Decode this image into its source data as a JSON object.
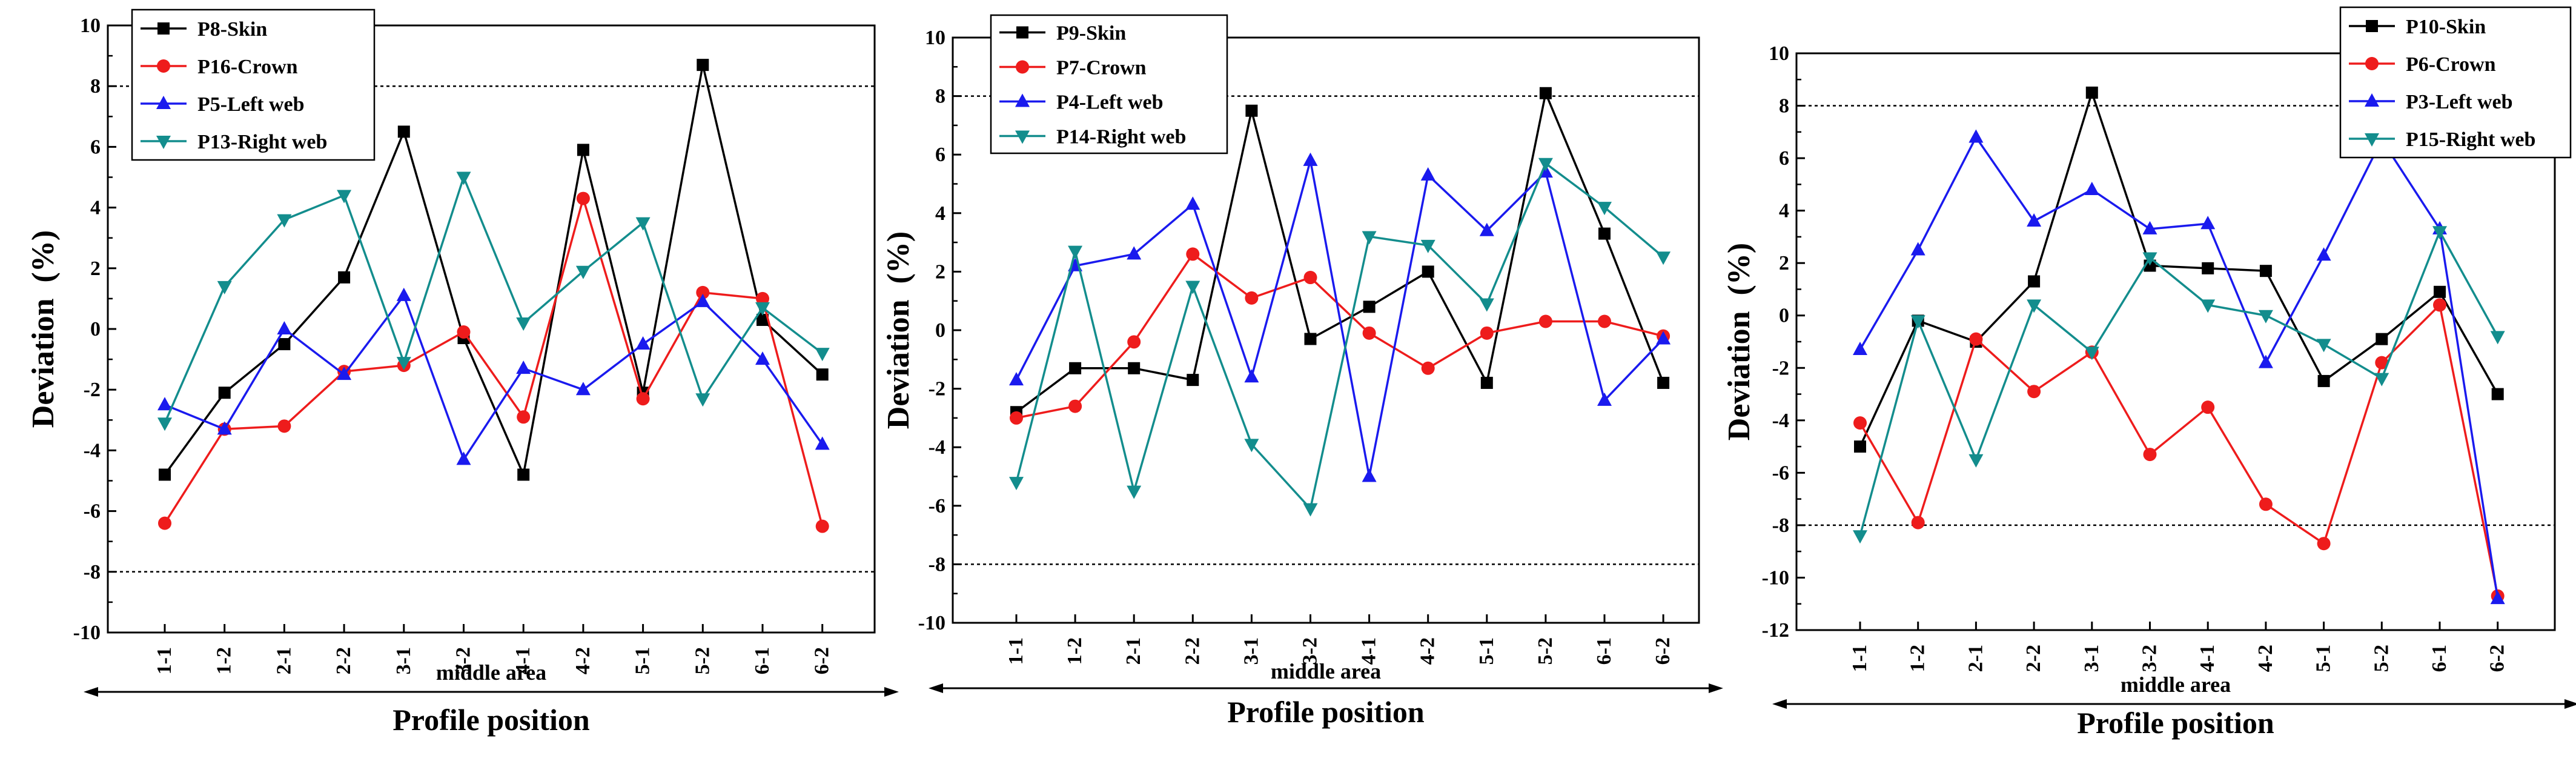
{
  "chart_data": [
    {
      "type": "line",
      "xlabel": "Profile position",
      "ylabel": "Deviation  (%)",
      "area_label": "middle area",
      "categories": [
        "1-1",
        "1-2",
        "2-1",
        "2-2",
        "3-1",
        "3-2",
        "4-1",
        "4-2",
        "5-1",
        "5-2",
        "6-1",
        "6-2"
      ],
      "ylim": [
        -10,
        10
      ],
      "yticks": [
        "-10",
        "-8",
        "-6",
        "-4",
        "-2",
        "0",
        "2",
        "4",
        "6",
        "8",
        "10"
      ],
      "ref_lines": [
        8,
        -8
      ],
      "legend_position": "top-left",
      "series": [
        {
          "name": "P8-Skin",
          "color": "#000000",
          "marker": "square",
          "values": [
            -4.8,
            -2.1,
            -0.5,
            1.7,
            6.5,
            -0.3,
            -4.8,
            5.9,
            -2.1,
            8.7,
            0.3,
            -1.5
          ]
        },
        {
          "name": "P16-Crown",
          "color": "#ee1c1c",
          "marker": "circle",
          "values": [
            -6.4,
            -3.3,
            -3.2,
            -1.4,
            -1.2,
            -0.1,
            -2.9,
            4.3,
            -2.3,
            1.2,
            1.0,
            -6.5
          ]
        },
        {
          "name": "P5-Left web",
          "color": "#1a1aee",
          "marker": "triangle-up",
          "values": [
            -2.5,
            -3.3,
            0.0,
            -1.5,
            1.1,
            -4.3,
            -1.3,
            -2.0,
            -0.5,
            0.9,
            -1.0,
            -3.8
          ]
        },
        {
          "name": "P13-Right web",
          "color": "#138d8d",
          "marker": "triangle-down",
          "values": [
            -3.1,
            1.4,
            3.6,
            4.4,
            -1.1,
            5.0,
            0.2,
            1.9,
            3.5,
            -2.3,
            0.7,
            -0.8
          ]
        }
      ]
    },
    {
      "type": "line",
      "xlabel": "Profile position",
      "ylabel": "Deviation  (%)",
      "area_label": "middle area",
      "categories": [
        "1-1",
        "1-2",
        "2-1",
        "2-2",
        "3-1",
        "3-2",
        "4-1",
        "4-2",
        "5-1",
        "5-2",
        "6-1",
        "6-2"
      ],
      "ylim": [
        -10,
        10
      ],
      "yticks": [
        "-10",
        "-8",
        "-6",
        "-4",
        "-2",
        "0",
        "2",
        "4",
        "6",
        "8",
        "10"
      ],
      "ref_lines": [
        8,
        -8
      ],
      "legend_position": "top-left",
      "series": [
        {
          "name": "P9-Skin",
          "color": "#000000",
          "marker": "square",
          "values": [
            -2.8,
            -1.3,
            -1.3,
            -1.7,
            7.5,
            -0.3,
            0.8,
            2.0,
            -1.8,
            8.1,
            3.3,
            -1.8
          ]
        },
        {
          "name": "P7-Crown",
          "color": "#ee1c1c",
          "marker": "circle",
          "values": [
            -3.0,
            -2.6,
            -0.4,
            2.6,
            1.1,
            1.8,
            -0.1,
            -1.3,
            -0.1,
            0.3,
            0.3,
            -0.2
          ]
        },
        {
          "name": "P4-Left web",
          "color": "#1a1aee",
          "marker": "triangle-up",
          "values": [
            -1.7,
            2.2,
            2.6,
            4.3,
            -1.6,
            5.8,
            -5.0,
            5.3,
            3.4,
            5.4,
            -2.4,
            -0.3
          ]
        },
        {
          "name": "P14-Right web",
          "color": "#138d8d",
          "marker": "triangle-down",
          "values": [
            -5.2,
            2.7,
            -5.5,
            1.5,
            -3.9,
            -6.1,
            3.2,
            2.9,
            0.9,
            5.7,
            4.2,
            2.5
          ]
        }
      ]
    },
    {
      "type": "line",
      "xlabel": "Profile position",
      "ylabel": "Deviation  (%)",
      "area_label": "middle area",
      "categories": [
        "1-1",
        "1-2",
        "2-1",
        "2-2",
        "3-1",
        "3-2",
        "4-1",
        "4-2",
        "5-1",
        "5-2",
        "6-1",
        "6-2"
      ],
      "ylim": [
        -12,
        10
      ],
      "yticks": [
        "-12",
        "-10",
        "-8",
        "-6",
        "-4",
        "-2",
        "0",
        "2",
        "4",
        "6",
        "8",
        "10"
      ],
      "ref_lines": [
        8,
        -8
      ],
      "legend_position": "top-right",
      "series": [
        {
          "name": "P10-Skin",
          "color": "#000000",
          "marker": "square",
          "values": [
            -5.0,
            -0.2,
            -1.0,
            1.3,
            8.5,
            1.9,
            1.8,
            1.7,
            -2.5,
            -0.9,
            0.9,
            -3.0
          ]
        },
        {
          "name": "P6-Crown",
          "color": "#ee1c1c",
          "marker": "circle",
          "values": [
            -4.1,
            -7.9,
            -0.9,
            -2.9,
            -1.4,
            -5.3,
            -3.5,
            -7.2,
            -8.7,
            -1.8,
            0.4,
            -10.7
          ]
        },
        {
          "name": "P3-Left web",
          "color": "#1a1aee",
          "marker": "triangle-up",
          "values": [
            -1.3,
            2.5,
            6.8,
            3.6,
            4.8,
            3.3,
            3.5,
            -1.8,
            2.3,
            6.7,
            3.3,
            -10.8
          ]
        },
        {
          "name": "P15-Right web",
          "color": "#138d8d",
          "marker": "triangle-down",
          "values": [
            -8.4,
            -0.2,
            -5.5,
            0.4,
            -1.4,
            2.2,
            0.4,
            0.0,
            -1.1,
            -2.4,
            3.2,
            -0.8
          ]
        }
      ]
    }
  ]
}
